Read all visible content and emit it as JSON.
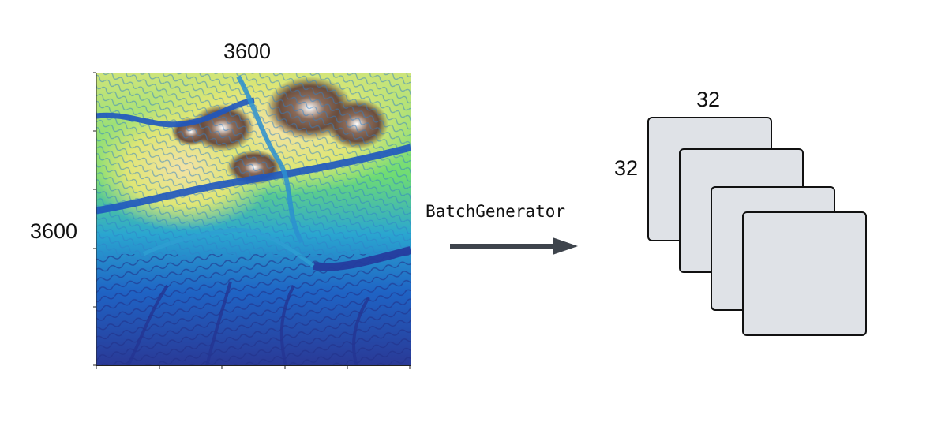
{
  "map": {
    "width_label": "3600",
    "height_label": "3600",
    "icon": "elevation-heatmap",
    "colormap": [
      "#2b3a9a",
      "#1a62c8",
      "#1fb0c9",
      "#3fd66e",
      "#d8e86a",
      "#f0e0a0",
      "#7a5a48",
      "#ffffff"
    ]
  },
  "process": {
    "label": "BatchGenerator",
    "icon": "right-arrow",
    "color": "#3e444c"
  },
  "patches": {
    "width_label": "32",
    "height_label": "32",
    "count": 4,
    "fill": "#dfe2e7",
    "border": "#111111"
  }
}
